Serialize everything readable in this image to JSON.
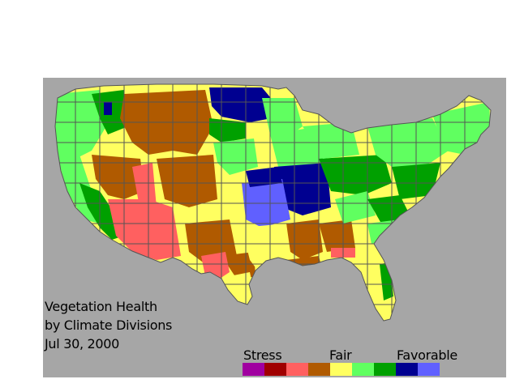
{
  "title": {
    "line1": "Vegetation Health",
    "line2": "by Climate Divisions",
    "date": "Jul 30, 2000"
  },
  "legend": {
    "stress_label": "Stress",
    "fair_label": "Fair",
    "favorable_label": "Favorable",
    "swatches": [
      "#a000a0",
      "#a00000",
      "#ff6060",
      "#b05a00",
      "#ffff60",
      "#60ff60",
      "#00a000",
      "#000090",
      "#6060ff"
    ]
  },
  "colors": {
    "background": "#a6a6a6",
    "borders": "#555555"
  }
}
